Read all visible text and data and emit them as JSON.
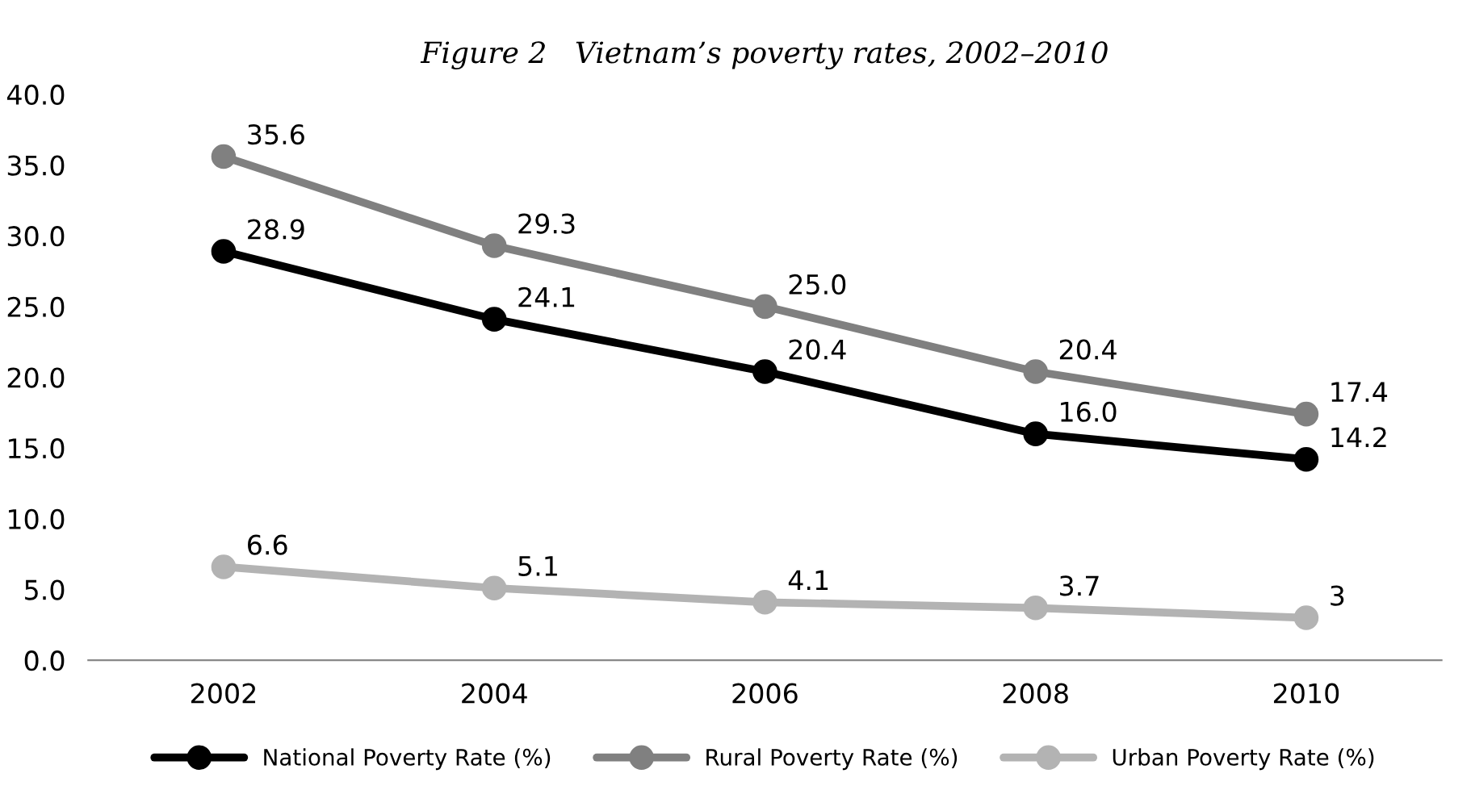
{
  "chart_data": {
    "type": "line",
    "title": "Figure 2   Vietnam’s poverty rates, 2002–2010",
    "categories": [
      "2002",
      "2004",
      "2006",
      "2008",
      "2010"
    ],
    "series": [
      {
        "name": "National Poverty Rate (%)",
        "color": "#000000",
        "values": [
          28.9,
          24.1,
          20.4,
          16.0,
          14.2
        ],
        "value_labels": [
          "28.9",
          "24.1",
          "20.4",
          "16.0",
          "14.2"
        ]
      },
      {
        "name": "Rural Poverty Rate (%)",
        "color": "#808080",
        "values": [
          35.6,
          29.3,
          25.0,
          20.4,
          17.4
        ],
        "value_labels": [
          "35.6",
          "29.3",
          "25.0",
          "20.4",
          "17.4"
        ]
      },
      {
        "name": "Urban Poverty Rate (%)",
        "color": "#b3b3b3",
        "values": [
          6.6,
          5.1,
          4.1,
          3.7,
          3
        ],
        "value_labels": [
          "6.6",
          "5.1",
          "4.1",
          "3.7",
          "3"
        ]
      }
    ],
    "ylim": [
      0,
      40
    ],
    "yticks": [
      {
        "value": 0,
        "label": "0.0"
      },
      {
        "value": 5,
        "label": "5.0"
      },
      {
        "value": 10,
        "label": "10.0"
      },
      {
        "value": 15,
        "label": "15.0"
      },
      {
        "value": 20,
        "label": "20.0"
      },
      {
        "value": 25,
        "label": "25.0"
      },
      {
        "value": 30,
        "label": "30.0"
      },
      {
        "value": 35,
        "label": "35.0"
      },
      {
        "value": 40,
        "label": "40.0"
      }
    ],
    "grid": false,
    "legend": "bottom",
    "marker": "circle",
    "line_style": "solid"
  }
}
